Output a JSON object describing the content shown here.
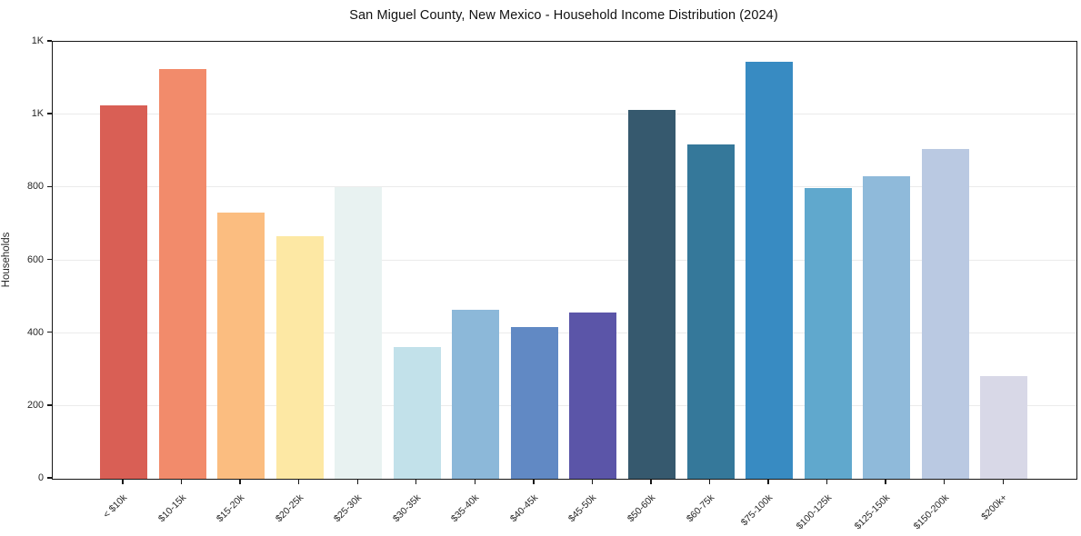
{
  "page": {
    "background": "#ffffff"
  },
  "chart_data": {
    "type": "bar",
    "title": "San Miguel County, New Mexico - Household Income Distribution (2024)",
    "xlabel": "",
    "ylabel": "Households",
    "categories": [
      "< $10k",
      "$10-15k",
      "$15-20k",
      "$20-25k",
      "$25-30k",
      "$30-35k",
      "$35-40k",
      "$40-45k",
      "$45-50k",
      "$50-60k",
      "$60-75k",
      "$75-100k",
      "$100-125k",
      "$125-150k",
      "$150-200k",
      "$200k+"
    ],
    "values": [
      1025,
      1125,
      730,
      665,
      800,
      362,
      463,
      417,
      456,
      1012,
      918,
      1144,
      798,
      830,
      906,
      283
    ],
    "bar_colors": [
      "#d95f55",
      "#f28b6b",
      "#fbbd80",
      "#fde8a4",
      "#e8f2f1",
      "#c2e1ea",
      "#8cb8d9",
      "#6189c4",
      "#5b55a8",
      "#36596e",
      "#35789a",
      "#388bc2",
      "#60a8cd",
      "#8fbada",
      "#bac9e2",
      "#d8d8e7"
    ],
    "ylim": [
      0,
      1200
    ],
    "yticks": [
      {
        "value": 0,
        "label": "0"
      },
      {
        "value": 200,
        "label": "200"
      },
      {
        "value": 400,
        "label": "400"
      },
      {
        "value": 600,
        "label": "600"
      },
      {
        "value": 800,
        "label": "800"
      },
      {
        "value": 1000,
        "label": "1K"
      },
      {
        "value": 1200,
        "label": "1K"
      }
    ],
    "grid": "horizontal",
    "legend": "none",
    "axis_color": "#161616",
    "grid_color": "#ebebeb",
    "text_color": "#262626"
  }
}
